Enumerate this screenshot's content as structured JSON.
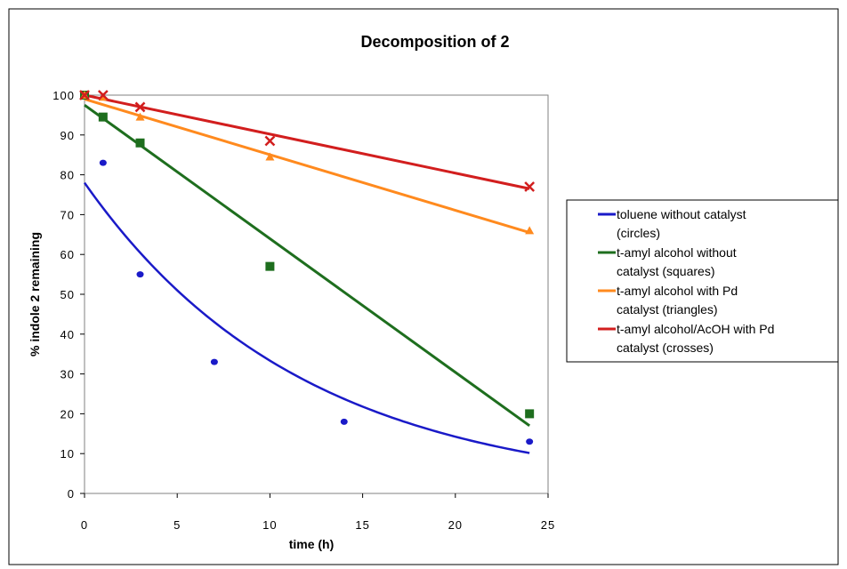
{
  "chart_data": {
    "type": "scatter",
    "title": "Decomposition of 2",
    "xlabel": "time  (h)",
    "ylabel": "% indole 2 remaining",
    "xlim": [
      0,
      25
    ],
    "ylim": [
      0,
      100
    ],
    "xticks": [
      0,
      5,
      10,
      15,
      20,
      25
    ],
    "yticks": [
      0,
      10,
      20,
      30,
      40,
      50,
      60,
      70,
      80,
      90,
      100
    ],
    "grid": false,
    "legend_position": "right",
    "series": [
      {
        "name": "toluene without catalyst (circles)",
        "legend_lines": [
          "toluene without catalyst",
          "(circles)"
        ],
        "marker": "circle",
        "color": "#1a1ac8",
        "x": [
          0,
          1,
          3,
          7,
          14,
          24
        ],
        "y": [
          100,
          83,
          55,
          33,
          18,
          13
        ],
        "trend": {
          "kind": "exponential",
          "a": 78,
          "b": -0.085,
          "x_range": [
            0,
            24
          ]
        }
      },
      {
        "name": "t-amyl alcohol without catalyst (squares)",
        "legend_lines": [
          "t-amyl alcohol without",
          "catalyst (squares)"
        ],
        "marker": "square",
        "color": "#1e6e1e",
        "x": [
          0,
          1,
          3,
          10,
          24
        ],
        "y": [
          100,
          94.5,
          88,
          57,
          20
        ],
        "trend": {
          "kind": "linear",
          "x": [
            0,
            24
          ],
          "y": [
            97.5,
            17
          ]
        }
      },
      {
        "name": "t-amyl alcohol with Pd catalyst (triangles)",
        "legend_lines": [
          "t-amyl alcohol with Pd",
          "catalyst (triangles)"
        ],
        "marker": "triangle",
        "color": "#ff8a1e",
        "x": [
          0,
          1,
          3,
          10,
          24
        ],
        "y": [
          100,
          99.5,
          94.5,
          84.5,
          66
        ],
        "trend": {
          "kind": "linear",
          "x": [
            0,
            24
          ],
          "y": [
            99,
            65.5
          ]
        }
      },
      {
        "name": "t-amyl alcohol/AcOH with Pd catalyst (crosses)",
        "legend_lines": [
          "t-amyl alcohol/AcOH with Pd",
          "catalyst (crosses)"
        ],
        "marker": "cross",
        "color": "#d21e1e",
        "x": [
          0,
          1,
          3,
          10,
          24
        ],
        "y": [
          100,
          100,
          97,
          88.5,
          77
        ],
        "trend": {
          "kind": "linear",
          "x": [
            0,
            24
          ],
          "y": [
            100,
            76.5
          ]
        }
      }
    ]
  }
}
